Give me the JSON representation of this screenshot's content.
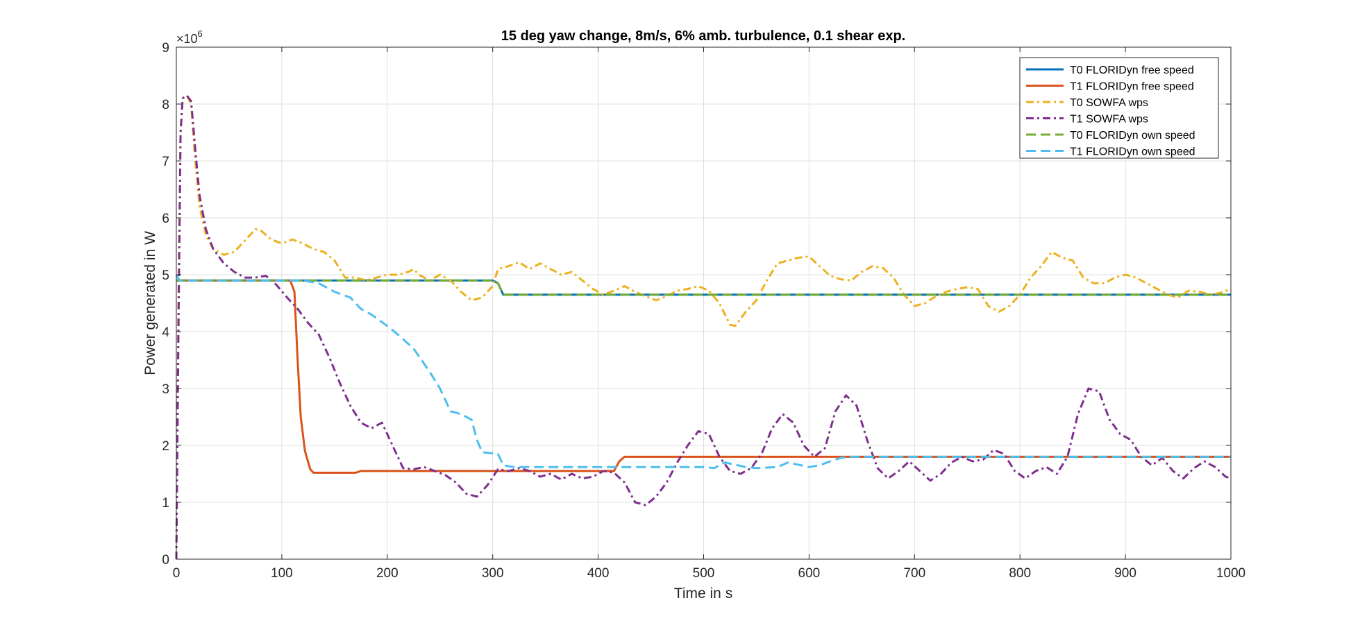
{
  "chart_data": {
    "type": "line",
    "title": "15 deg yaw change, 8m/s, 6% amb. turbulence, 0.1 shear exp.",
    "xlabel": "Time in s",
    "ylabel": "Power generated in W",
    "y_exponent_prefix": "×10",
    "y_exponent": "6",
    "xlim": [
      0,
      1000
    ],
    "ylim": [
      0,
      9
    ],
    "y_scale_factor": 1000000,
    "xticks": [
      "0",
      "100",
      "200",
      "300",
      "400",
      "500",
      "600",
      "700",
      "800",
      "900",
      "1000"
    ],
    "yticks": [
      "0",
      "1",
      "2",
      "3",
      "4",
      "5",
      "6",
      "7",
      "8",
      "9"
    ],
    "grid": true,
    "legend_position": "top-right",
    "series": [
      {
        "name": "T0 FLORIDyn free speed",
        "color": "#0072BD",
        "style": "solid",
        "points": [
          [
            0,
            4.9
          ],
          [
            300,
            4.9
          ],
          [
            305,
            4.85
          ],
          [
            310,
            4.65
          ],
          [
            1000,
            4.65
          ]
        ]
      },
      {
        "name": "T1 FLORIDyn free speed",
        "color": "#D95319",
        "style": "solid",
        "points": [
          [
            0,
            4.9
          ],
          [
            108,
            4.9
          ],
          [
            112,
            4.7
          ],
          [
            115,
            3.5
          ],
          [
            118,
            2.5
          ],
          [
            122,
            1.9
          ],
          [
            127,
            1.58
          ],
          [
            130,
            1.52
          ],
          [
            170,
            1.52
          ],
          [
            175,
            1.55
          ],
          [
            415,
            1.55
          ],
          [
            420,
            1.72
          ],
          [
            425,
            1.8
          ],
          [
            1000,
            1.8
          ]
        ]
      },
      {
        "name": "T0 SOWFA wps",
        "color": "#EDB120",
        "style": "dashdot",
        "points": [
          [
            0,
            0
          ],
          [
            2,
            4.5
          ],
          [
            4,
            7.5
          ],
          [
            6,
            8.1
          ],
          [
            10,
            8.15
          ],
          [
            14,
            8.0
          ],
          [
            18,
            7.0
          ],
          [
            22,
            6.2
          ],
          [
            28,
            5.7
          ],
          [
            35,
            5.45
          ],
          [
            45,
            5.35
          ],
          [
            55,
            5.4
          ],
          [
            65,
            5.6
          ],
          [
            75,
            5.8
          ],
          [
            80,
            5.78
          ],
          [
            90,
            5.62
          ],
          [
            100,
            5.55
          ],
          [
            110,
            5.62
          ],
          [
            120,
            5.55
          ],
          [
            130,
            5.45
          ],
          [
            140,
            5.4
          ],
          [
            150,
            5.25
          ],
          [
            160,
            4.95
          ],
          [
            170,
            4.95
          ],
          [
            180,
            4.9
          ],
          [
            190,
            4.95
          ],
          [
            200,
            5.0
          ],
          [
            210,
            5.0
          ],
          [
            220,
            5.05
          ],
          [
            225,
            5.1
          ],
          [
            230,
            5.0
          ],
          [
            240,
            4.9
          ],
          [
            250,
            5.0
          ],
          [
            260,
            4.9
          ],
          [
            270,
            4.7
          ],
          [
            280,
            4.55
          ],
          [
            290,
            4.6
          ],
          [
            300,
            4.8
          ],
          [
            305,
            5.1
          ],
          [
            315,
            5.15
          ],
          [
            325,
            5.22
          ],
          [
            335,
            5.1
          ],
          [
            345,
            5.2
          ],
          [
            355,
            5.1
          ],
          [
            365,
            5.0
          ],
          [
            375,
            5.05
          ],
          [
            385,
            4.9
          ],
          [
            395,
            4.75
          ],
          [
            405,
            4.65
          ],
          [
            415,
            4.72
          ],
          [
            425,
            4.8
          ],
          [
            435,
            4.7
          ],
          [
            445,
            4.62
          ],
          [
            455,
            4.55
          ],
          [
            465,
            4.62
          ],
          [
            475,
            4.72
          ],
          [
            485,
            4.75
          ],
          [
            495,
            4.8
          ],
          [
            505,
            4.72
          ],
          [
            515,
            4.5
          ],
          [
            525,
            4.12
          ],
          [
            530,
            4.1
          ],
          [
            540,
            4.35
          ],
          [
            550,
            4.55
          ],
          [
            560,
            4.9
          ],
          [
            570,
            5.2
          ],
          [
            580,
            5.25
          ],
          [
            590,
            5.3
          ],
          [
            600,
            5.32
          ],
          [
            610,
            5.15
          ],
          [
            620,
            4.98
          ],
          [
            630,
            4.92
          ],
          [
            640,
            4.9
          ],
          [
            650,
            5.05
          ],
          [
            660,
            5.15
          ],
          [
            670,
            5.12
          ],
          [
            680,
            4.95
          ],
          [
            690,
            4.65
          ],
          [
            700,
            4.45
          ],
          [
            710,
            4.5
          ],
          [
            720,
            4.62
          ],
          [
            730,
            4.7
          ],
          [
            740,
            4.75
          ],
          [
            750,
            4.78
          ],
          [
            760,
            4.75
          ],
          [
            770,
            4.45
          ],
          [
            780,
            4.35
          ],
          [
            790,
            4.45
          ],
          [
            800,
            4.65
          ],
          [
            810,
            4.95
          ],
          [
            820,
            5.15
          ],
          [
            830,
            5.4
          ],
          [
            840,
            5.3
          ],
          [
            850,
            5.25
          ],
          [
            860,
            4.95
          ],
          [
            870,
            4.85
          ],
          [
            880,
            4.85
          ],
          [
            890,
            4.95
          ],
          [
            900,
            5.0
          ],
          [
            910,
            4.95
          ],
          [
            920,
            4.85
          ],
          [
            930,
            4.75
          ],
          [
            940,
            4.65
          ],
          [
            950,
            4.6
          ],
          [
            960,
            4.72
          ],
          [
            970,
            4.7
          ],
          [
            980,
            4.65
          ],
          [
            990,
            4.68
          ],
          [
            1000,
            4.75
          ]
        ]
      },
      {
        "name": "T1 SOWFA wps",
        "color": "#7E2F8E",
        "style": "dashdot",
        "points": [
          [
            0,
            0
          ],
          [
            2,
            4.0
          ],
          [
            4,
            7.5
          ],
          [
            6,
            8.1
          ],
          [
            10,
            8.15
          ],
          [
            14,
            8.05
          ],
          [
            18,
            7.2
          ],
          [
            22,
            6.4
          ],
          [
            28,
            5.8
          ],
          [
            35,
            5.45
          ],
          [
            45,
            5.2
          ],
          [
            55,
            5.05
          ],
          [
            65,
            4.95
          ],
          [
            75,
            4.95
          ],
          [
            85,
            4.98
          ],
          [
            95,
            4.82
          ],
          [
            105,
            4.6
          ],
          [
            115,
            4.4
          ],
          [
            125,
            4.15
          ],
          [
            135,
            3.95
          ],
          [
            145,
            3.55
          ],
          [
            155,
            3.1
          ],
          [
            165,
            2.7
          ],
          [
            175,
            2.4
          ],
          [
            185,
            2.3
          ],
          [
            195,
            2.4
          ],
          [
            205,
            2.0
          ],
          [
            215,
            1.6
          ],
          [
            225,
            1.58
          ],
          [
            235,
            1.62
          ],
          [
            245,
            1.55
          ],
          [
            255,
            1.48
          ],
          [
            265,
            1.35
          ],
          [
            275,
            1.15
          ],
          [
            285,
            1.1
          ],
          [
            295,
            1.3
          ],
          [
            305,
            1.58
          ],
          [
            315,
            1.55
          ],
          [
            325,
            1.6
          ],
          [
            335,
            1.55
          ],
          [
            345,
            1.45
          ],
          [
            355,
            1.5
          ],
          [
            365,
            1.4
          ],
          [
            375,
            1.5
          ],
          [
            385,
            1.42
          ],
          [
            395,
            1.45
          ],
          [
            405,
            1.55
          ],
          [
            415,
            1.52
          ],
          [
            425,
            1.35
          ],
          [
            435,
            1.0
          ],
          [
            445,
            0.95
          ],
          [
            455,
            1.1
          ],
          [
            465,
            1.35
          ],
          [
            475,
            1.7
          ],
          [
            485,
            2.0
          ],
          [
            495,
            2.25
          ],
          [
            505,
            2.2
          ],
          [
            515,
            1.8
          ],
          [
            525,
            1.55
          ],
          [
            535,
            1.5
          ],
          [
            545,
            1.6
          ],
          [
            555,
            1.85
          ],
          [
            565,
            2.3
          ],
          [
            575,
            2.55
          ],
          [
            585,
            2.4
          ],
          [
            595,
            2.0
          ],
          [
            605,
            1.8
          ],
          [
            615,
            1.95
          ],
          [
            625,
            2.6
          ],
          [
            635,
            2.88
          ],
          [
            645,
            2.7
          ],
          [
            655,
            2.1
          ],
          [
            665,
            1.6
          ],
          [
            675,
            1.42
          ],
          [
            685,
            1.55
          ],
          [
            695,
            1.72
          ],
          [
            705,
            1.55
          ],
          [
            715,
            1.38
          ],
          [
            725,
            1.5
          ],
          [
            735,
            1.7
          ],
          [
            745,
            1.8
          ],
          [
            755,
            1.72
          ],
          [
            765,
            1.75
          ],
          [
            775,
            1.92
          ],
          [
            785,
            1.85
          ],
          [
            795,
            1.55
          ],
          [
            805,
            1.42
          ],
          [
            815,
            1.55
          ],
          [
            825,
            1.62
          ],
          [
            835,
            1.5
          ],
          [
            845,
            1.8
          ],
          [
            855,
            2.55
          ],
          [
            865,
            3.0
          ],
          [
            875,
            2.95
          ],
          [
            885,
            2.45
          ],
          [
            895,
            2.2
          ],
          [
            905,
            2.1
          ],
          [
            915,
            1.8
          ],
          [
            925,
            1.65
          ],
          [
            935,
            1.78
          ],
          [
            945,
            1.55
          ],
          [
            955,
            1.42
          ],
          [
            965,
            1.6
          ],
          [
            975,
            1.72
          ],
          [
            985,
            1.62
          ],
          [
            995,
            1.45
          ],
          [
            1000,
            1.42
          ]
        ]
      },
      {
        "name": "T0 FLORIDyn own speed",
        "color": "#77AC30",
        "style": "dashed",
        "points": [
          [
            0,
            4.9
          ],
          [
            300,
            4.9
          ],
          [
            305,
            4.85
          ],
          [
            310,
            4.65
          ],
          [
            1000,
            4.65
          ]
        ]
      },
      {
        "name": "T1 FLORIDyn own speed",
        "color": "#4DBEEE",
        "style": "dashed",
        "points": [
          [
            0,
            5.0
          ],
          [
            3,
            4.9
          ],
          [
            120,
            4.9
          ],
          [
            135,
            4.85
          ],
          [
            150,
            4.7
          ],
          [
            165,
            4.6
          ],
          [
            175,
            4.4
          ],
          [
            185,
            4.3
          ],
          [
            200,
            4.1
          ],
          [
            210,
            3.95
          ],
          [
            225,
            3.7
          ],
          [
            240,
            3.3
          ],
          [
            250,
            3.0
          ],
          [
            260,
            2.6
          ],
          [
            270,
            2.55
          ],
          [
            280,
            2.45
          ],
          [
            285,
            2.1
          ],
          [
            290,
            1.88
          ],
          [
            305,
            1.85
          ],
          [
            310,
            1.65
          ],
          [
            320,
            1.62
          ],
          [
            500,
            1.62
          ],
          [
            510,
            1.6
          ],
          [
            520,
            1.7
          ],
          [
            540,
            1.62
          ],
          [
            550,
            1.6
          ],
          [
            570,
            1.62
          ],
          [
            580,
            1.7
          ],
          [
            600,
            1.62
          ],
          [
            610,
            1.65
          ],
          [
            620,
            1.72
          ],
          [
            630,
            1.78
          ],
          [
            640,
            1.8
          ],
          [
            1000,
            1.8
          ]
        ]
      }
    ]
  }
}
